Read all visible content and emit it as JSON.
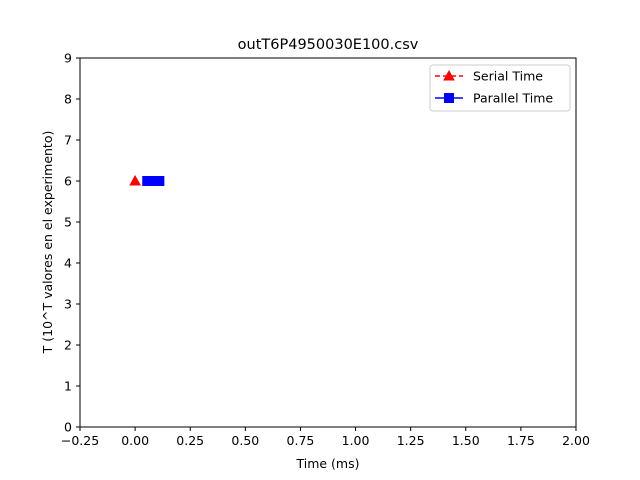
{
  "chart_data": {
    "type": "scatter",
    "title": "outT6P4950030E100.csv",
    "xlabel": "Time (ms)",
    "ylabel": "T (10^T valores en el experimento)",
    "xlim": [
      -0.25,
      2.0
    ],
    "ylim": [
      0,
      9
    ],
    "xticks": [
      -0.25,
      0.0,
      0.25,
      0.5,
      0.75,
      1.0,
      1.25,
      1.5,
      1.75,
      2.0
    ],
    "xtick_labels": [
      "−0.25",
      "0.00",
      "0.25",
      "0.50",
      "0.75",
      "1.00",
      "1.25",
      "1.50",
      "1.75",
      "2.00"
    ],
    "yticks": [
      0,
      1,
      2,
      3,
      4,
      5,
      6,
      7,
      8,
      9
    ],
    "ytick_labels": [
      "0",
      "1",
      "2",
      "3",
      "4",
      "5",
      "6",
      "7",
      "8",
      "9"
    ],
    "grid": false,
    "legend_position": "top-right",
    "series": [
      {
        "name": "Serial Time",
        "color": "#ff0000",
        "marker": "triangle",
        "line_style": "dashed",
        "points": [
          {
            "x": 0.0,
            "y": 6
          }
        ]
      },
      {
        "name": "Parallel Time",
        "color": "#0000ff",
        "marker": "square",
        "line_style": "solid",
        "points": [
          {
            "x": 0.055,
            "y": 6
          },
          {
            "x": 0.07,
            "y": 6
          },
          {
            "x": 0.085,
            "y": 6
          },
          {
            "x": 0.11,
            "y": 6
          }
        ]
      }
    ]
  }
}
